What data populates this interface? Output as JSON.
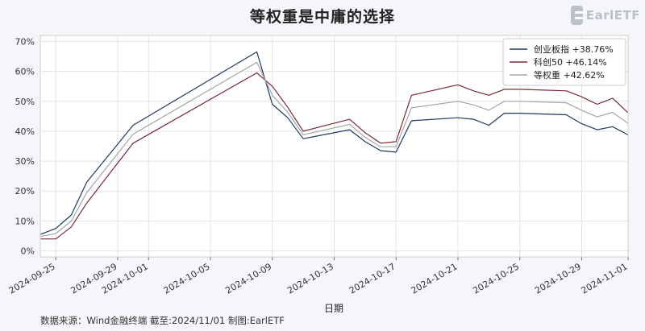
{
  "brand": {
    "logo_text": "EarlETF"
  },
  "chart_data": {
    "type": "line",
    "title": "等权重是中庸的选择",
    "xlabel": "日期",
    "ylabel": "",
    "ylim": [
      -2,
      72
    ],
    "yticks": [
      "0%",
      "10%",
      "20%",
      "30%",
      "40%",
      "50%",
      "60%",
      "70%"
    ],
    "ytick_values": [
      0,
      10,
      20,
      30,
      40,
      50,
      60,
      70
    ],
    "xlim": [
      "2024-09-24",
      "2024-11-01"
    ],
    "xticks": [
      "2024-09-25",
      "2024-09-29",
      "2024-10-01",
      "2024-10-05",
      "2024-10-09",
      "2024-10-13",
      "2024-10-17",
      "2024-10-21",
      "2024-10-25",
      "2024-10-29",
      "2024-11-01"
    ],
    "x": [
      "2024-09-24",
      "2024-09-25",
      "2024-09-26",
      "2024-09-27",
      "2024-09-30",
      "2024-10-08",
      "2024-10-09",
      "2024-10-10",
      "2024-10-11",
      "2024-10-14",
      "2024-10-15",
      "2024-10-16",
      "2024-10-17",
      "2024-10-18",
      "2024-10-21",
      "2024-10-22",
      "2024-10-23",
      "2024-10-24",
      "2024-10-25",
      "2024-10-28",
      "2024-10-29",
      "2024-10-30",
      "2024-10-31",
      "2024-11-01"
    ],
    "series": [
      {
        "name": "创业板指",
        "legend_label": "创业板指  +38.76%",
        "color": "#1f3a5f",
        "values": [
          5.5,
          7.5,
          12.0,
          23.0,
          42.0,
          66.5,
          49.0,
          44.5,
          37.5,
          40.5,
          36.5,
          33.5,
          33.0,
          43.5,
          44.5,
          44.0,
          42.0,
          46.0,
          46.0,
          45.5,
          42.5,
          40.5,
          41.5,
          38.76
        ]
      },
      {
        "name": "科创50",
        "legend_label": "科创50  +46.14%",
        "color": "#7a2a33",
        "values": [
          4.0,
          4.0,
          8.0,
          16.0,
          36.0,
          59.5,
          55.0,
          48.0,
          40.0,
          44.0,
          39.5,
          36.0,
          36.5,
          52.0,
          55.5,
          53.5,
          52.0,
          54.0,
          54.0,
          53.5,
          51.5,
          49.0,
          51.0,
          46.14
        ]
      },
      {
        "name": "等权重",
        "legend_label": "等权重  +42.62%",
        "color": "#a5a5a5",
        "values": [
          4.8,
          5.8,
          10.0,
          19.5,
          39.0,
          63.0,
          52.0,
          46.3,
          38.8,
          42.3,
          38.0,
          34.8,
          34.8,
          47.8,
          50.0,
          48.8,
          47.0,
          50.0,
          50.0,
          49.5,
          47.0,
          44.8,
          46.3,
          42.62
        ]
      }
    ],
    "grid": true,
    "legend_position": "top-right"
  },
  "footer": {
    "source_text": "数据来源：Wind金融终端 截至:2024/11/01 制图:EarlETF"
  }
}
